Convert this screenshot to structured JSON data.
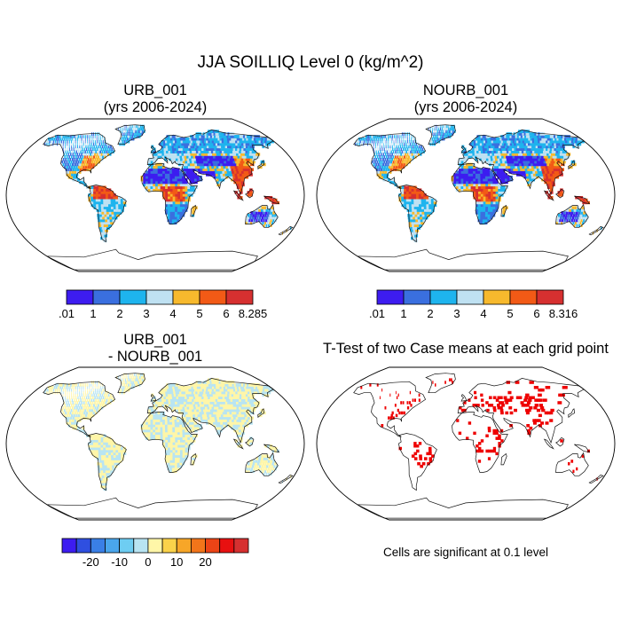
{
  "main_title": "JJA SOILLIQ Level 0 (kg/m^2)",
  "chart_data": [
    {
      "type": "heatmap",
      "panel": "top-left",
      "title_line1": "URB_001",
      "title_line2": "(yrs 2006-2024)",
      "colorbar": {
        "colors": [
          "#3d1cf0",
          "#3a6fdf",
          "#1eb4ee",
          "#bfe1f2",
          "#f7b92d",
          "#f25a16",
          "#d63030"
        ],
        "tick_labels": [
          ".01",
          "1",
          "2",
          "3",
          "4",
          "5",
          "6",
          "8.285"
        ]
      }
    },
    {
      "type": "heatmap",
      "panel": "top-right",
      "title_line1": "NOURB_001",
      "title_line2": "(yrs 2006-2024)",
      "colorbar": {
        "colors": [
          "#3d1cf0",
          "#3a6fdf",
          "#1eb4ee",
          "#bfe1f2",
          "#f7b92d",
          "#f25a16",
          "#d63030"
        ],
        "tick_labels": [
          ".01",
          "1",
          "2",
          "3",
          "4",
          "5",
          "6",
          "8.316"
        ]
      }
    },
    {
      "type": "heatmap",
      "panel": "bottom-left",
      "title_line1": "URB_001",
      "title_line2": "- NOURB_001",
      "colorbar": {
        "colors": [
          "#3d1cf0",
          "#2f4fe0",
          "#3a7fe6",
          "#4aa6ec",
          "#6ecdf2",
          "#b8e4f2",
          "#fff6a8",
          "#fad24a",
          "#f7a628",
          "#f2751a",
          "#ec4416",
          "#e81010",
          "#d63030"
        ],
        "tick_labels": [
          "-20",
          "-10",
          "0",
          "10",
          "20"
        ],
        "tick_positions": [
          2,
          4,
          6,
          8,
          10
        ]
      }
    },
    {
      "type": "heatmap",
      "panel": "bottom-right",
      "title": "T-Test of two Case means at each grid point",
      "note": "Cells are significant at 0.1 level",
      "marker_color": "#ee0000"
    }
  ],
  "colors": {
    "ocean": "#ffffff",
    "coast": "#111111",
    "diff_pos": "#fff6a8",
    "diff_neg": "#b8e4f2",
    "significant": "#ee0000"
  }
}
